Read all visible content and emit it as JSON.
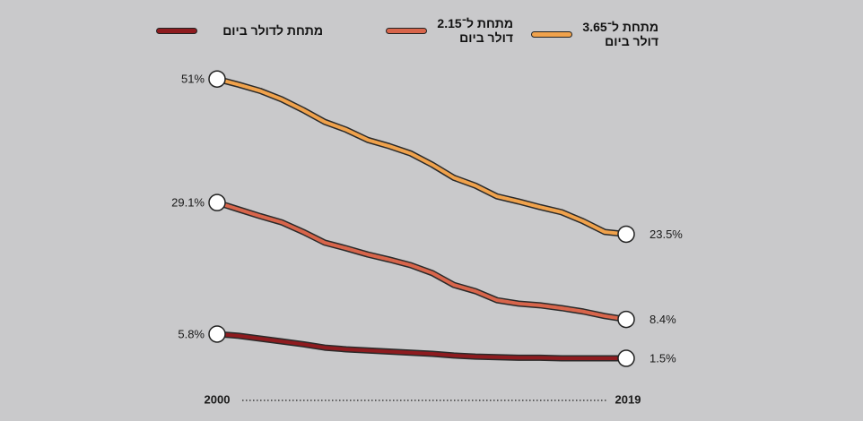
{
  "chart_data": {
    "type": "line",
    "x": [
      2000,
      2001,
      2002,
      2003,
      2004,
      2005,
      2006,
      2007,
      2008,
      2009,
      2010,
      2011,
      2012,
      2013,
      2014,
      2015,
      2016,
      2017,
      2018,
      2019
    ],
    "xlim": [
      2000,
      2019
    ],
    "xticks": [
      2000,
      2019
    ],
    "ylim": [
      0,
      55
    ],
    "series": [
      {
        "name": "מתחת לדולר ביום",
        "color": "#8e1b1f",
        "values": [
          5.8,
          5.5,
          5.0,
          4.5,
          4.0,
          3.4,
          3.1,
          2.9,
          2.7,
          2.5,
          2.3,
          2.0,
          1.8,
          1.7,
          1.6,
          1.6,
          1.5,
          1.5,
          1.5,
          1.5
        ],
        "value_labels": [
          "5.8%",
          null,
          null,
          null,
          null,
          null,
          null,
          null,
          null,
          null,
          null,
          null,
          null,
          null,
          null,
          null,
          null,
          null,
          null,
          "1.5%"
        ]
      },
      {
        "name": "מתחת ל־2.15 דולר ביום",
        "color": "#d8654b",
        "values": [
          29.1,
          27.9,
          26.7,
          25.6,
          23.9,
          22.0,
          21.0,
          19.9,
          19.0,
          18.0,
          16.6,
          14.5,
          13.4,
          11.8,
          11.2,
          10.9,
          10.4,
          9.8,
          9.0,
          8.4
        ],
        "value_labels": [
          "29.1%",
          null,
          null,
          null,
          null,
          null,
          null,
          null,
          null,
          null,
          null,
          null,
          null,
          null,
          null,
          null,
          null,
          null,
          null,
          "8.4%"
        ]
      },
      {
        "name": "מתחת ל־3.65 דולר ביום",
        "color": "#f0a24c",
        "values": [
          51,
          50.0,
          48.9,
          47.4,
          45.5,
          43.4,
          42.0,
          40.2,
          39.1,
          37.8,
          35.8,
          33.5,
          32.1,
          30.2,
          29.3,
          28.3,
          27.4,
          25.8,
          23.9,
          23.5
        ],
        "value_labels": [
          "51%",
          null,
          null,
          null,
          null,
          null,
          null,
          null,
          null,
          null,
          null,
          null,
          null,
          null,
          null,
          null,
          null,
          null,
          null,
          "23.5%"
        ]
      }
    ]
  }
}
